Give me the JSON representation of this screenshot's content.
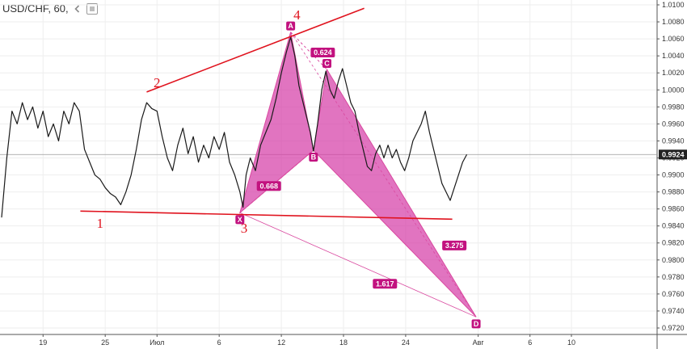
{
  "header": {
    "symbol_text": "USD/CHF, 60,",
    "collapse_icon": "chevron-left-icon",
    "settings_icon": "settings-square-icon"
  },
  "colors": {
    "price_line": "#1a1a1a",
    "pattern_fill": "#d63fa8",
    "pattern_stroke": "#d9489f",
    "label_bg": "#c2127f",
    "annotation_red": "#e0131e",
    "grid": "#eeeeee",
    "current_price_bg": "#222222"
  },
  "chart_data": {
    "type": "line",
    "title": "USD/CHF, 60,",
    "xlabel": "",
    "ylabel": "",
    "ylim": [
      0.9712,
      1.0102
    ],
    "y_ticks": [
      "1.0100",
      "1.0080",
      "1.0060",
      "1.0040",
      "1.0020",
      "1.0000",
      "0.9980",
      "0.9960",
      "0.9940",
      "0.9920",
      "0.9900",
      "0.9880",
      "0.9860",
      "0.9840",
      "0.9820",
      "0.9800",
      "0.9780",
      "0.9760",
      "0.9740",
      "0.9720"
    ],
    "x_ticks": [
      {
        "label": "19",
        "day": 19
      },
      {
        "label": "25",
        "day": 25
      },
      {
        "label": "Июл",
        "day": 30
      },
      {
        "label": "6",
        "day": 36
      },
      {
        "label": "12",
        "day": 42
      },
      {
        "label": "18",
        "day": 48
      },
      {
        "label": "24",
        "day": 54
      },
      {
        "label": "Авг",
        "day": 61
      },
      {
        "label": "6",
        "day": 66
      },
      {
        "label": "10",
        "day": 70
      }
    ],
    "current_price": "0.9924",
    "series": [
      {
        "points": [
          [
            15.0,
            0.985
          ],
          [
            15.5,
            0.992
          ],
          [
            16.0,
            0.9975
          ],
          [
            16.5,
            0.996
          ],
          [
            17.0,
            0.9985
          ],
          [
            17.5,
            0.9965
          ],
          [
            18.0,
            0.998
          ],
          [
            18.5,
            0.9955
          ],
          [
            19.0,
            0.9975
          ],
          [
            19.5,
            0.9945
          ],
          [
            20.0,
            0.996
          ],
          [
            20.5,
            0.994
          ],
          [
            21.0,
            0.9975
          ],
          [
            21.5,
            0.996
          ],
          [
            22.0,
            0.9985
          ],
          [
            22.5,
            0.9975
          ],
          [
            23.0,
            0.993
          ],
          [
            23.5,
            0.9915
          ],
          [
            24.0,
            0.99
          ],
          [
            24.5,
            0.9895
          ],
          [
            25.0,
            0.9885
          ],
          [
            25.5,
            0.9878
          ],
          [
            26.0,
            0.9874
          ],
          [
            26.5,
            0.9865
          ],
          [
            27.0,
            0.988
          ],
          [
            27.5,
            0.99
          ],
          [
            28.0,
            0.993
          ],
          [
            28.5,
            0.9965
          ],
          [
            29.0,
            0.9985
          ],
          [
            29.5,
            0.9978
          ],
          [
            30.0,
            0.9975
          ],
          [
            30.5,
            0.9945
          ],
          [
            31.0,
            0.992
          ],
          [
            31.5,
            0.9905
          ],
          [
            32.0,
            0.9935
          ],
          [
            32.5,
            0.9955
          ],
          [
            33.0,
            0.9925
          ],
          [
            33.5,
            0.9945
          ],
          [
            34.0,
            0.9915
          ],
          [
            34.5,
            0.9935
          ],
          [
            35.0,
            0.992
          ],
          [
            35.5,
            0.9945
          ],
          [
            36.0,
            0.993
          ],
          [
            36.5,
            0.995
          ],
          [
            37.0,
            0.9915
          ],
          [
            37.5,
            0.99
          ],
          [
            38.0,
            0.988
          ],
          [
            38.3,
            0.9862
          ],
          [
            38.6,
            0.99
          ],
          [
            39.0,
            0.992
          ],
          [
            39.5,
            0.9905
          ],
          [
            40.0,
            0.9935
          ],
          [
            40.5,
            0.995
          ],
          [
            41.0,
            0.9965
          ],
          [
            41.5,
            0.999
          ],
          [
            42.0,
            1.002
          ],
          [
            42.5,
            1.0045
          ],
          [
            42.9,
            1.0062
          ],
          [
            43.3,
            1.004
          ],
          [
            43.7,
            1.0005
          ],
          [
            44.1,
            0.9985
          ],
          [
            44.5,
            0.9965
          ],
          [
            44.8,
            0.995
          ],
          [
            45.1,
            0.9928
          ],
          [
            45.5,
            0.996
          ],
          [
            45.9,
            1.0
          ],
          [
            46.3,
            1.0022
          ],
          [
            46.7,
            1.0
          ],
          [
            47.1,
            0.999
          ],
          [
            47.5,
            1.001
          ],
          [
            47.9,
            1.0025
          ],
          [
            48.3,
            1.0005
          ],
          [
            48.7,
            0.9985
          ],
          [
            49.1,
            0.9975
          ],
          [
            49.5,
            0.995
          ],
          [
            49.9,
            0.993
          ],
          [
            50.3,
            0.991
          ],
          [
            50.7,
            0.9905
          ],
          [
            51.1,
            0.9925
          ],
          [
            51.5,
            0.9935
          ],
          [
            51.9,
            0.992
          ],
          [
            52.3,
            0.9935
          ],
          [
            52.7,
            0.992
          ],
          [
            53.1,
            0.993
          ],
          [
            53.5,
            0.9915
          ],
          [
            53.9,
            0.9905
          ],
          [
            54.3,
            0.992
          ],
          [
            54.7,
            0.994
          ],
          [
            55.1,
            0.995
          ],
          [
            55.5,
            0.996
          ],
          [
            55.9,
            0.9975
          ],
          [
            56.3,
            0.995
          ],
          [
            56.7,
            0.993
          ],
          [
            57.1,
            0.991
          ],
          [
            57.5,
            0.989
          ],
          [
            57.9,
            0.988
          ],
          [
            58.3,
            0.987
          ],
          [
            58.7,
            0.9885
          ],
          [
            59.1,
            0.99
          ],
          [
            59.5,
            0.9915
          ],
          [
            59.9,
            0.9924
          ]
        ]
      }
    ],
    "pattern": {
      "points": [
        {
          "label": "X",
          "day": 38.0,
          "price": 0.98555
        },
        {
          "label": "A",
          "day": 42.9,
          "price": 1.0068
        },
        {
          "label": "B",
          "day": 45.1,
          "price": 0.9929
        },
        {
          "label": "C",
          "day": 46.4,
          "price": 1.0024
        },
        {
          "label": "D",
          "day": 60.8,
          "price": 0.9733
        }
      ],
      "ratios": [
        {
          "text": "0.624",
          "day": 46.0,
          "price": 1.0044
        },
        {
          "text": "0.668",
          "day": 40.8,
          "price": 0.9887
        },
        {
          "text": "3.275",
          "day": 58.7,
          "price": 0.9817
        },
        {
          "text": "1.617",
          "day": 52.0,
          "price": 0.9772
        }
      ]
    },
    "annotations": {
      "labels": [
        {
          "text": "1",
          "day": 24.5,
          "price": 0.9838
        },
        {
          "text": "2",
          "day": 30.0,
          "price": 1.0003
        },
        {
          "text": "3",
          "day": 38.4,
          "price": 0.9832
        },
        {
          "text": "4",
          "day": 43.5,
          "price": 1.0083
        }
      ],
      "lines": [
        {
          "from": {
            "day": 22.6,
            "price": 0.98575
          },
          "to": {
            "day": 58.5,
            "price": 0.9848
          }
        },
        {
          "from": {
            "day": 29.0,
            "price": 0.99975
          },
          "to": {
            "day": 50.0,
            "price": 1.0096
          }
        }
      ]
    }
  }
}
